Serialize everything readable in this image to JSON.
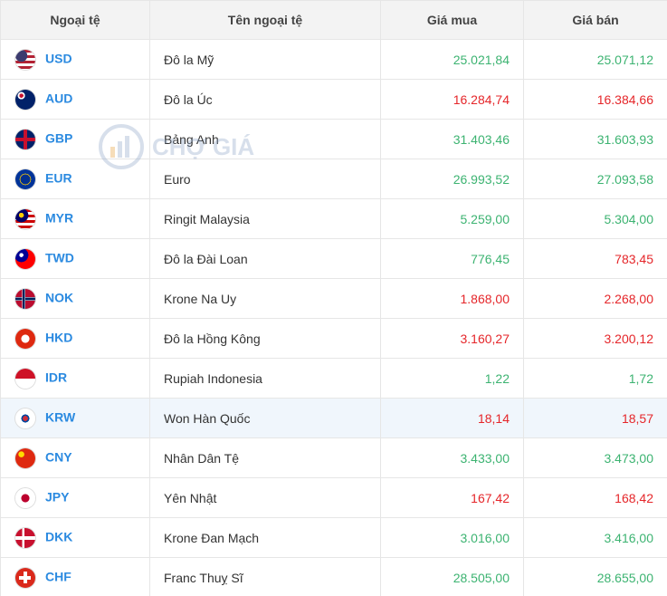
{
  "table": {
    "header": [
      "Ngoại tệ",
      "Tên ngoại tệ",
      "Giá mua",
      "Giá bán"
    ],
    "rows": [
      {
        "code": "USD",
        "name": "Đô la Mỹ",
        "buy": "25.021,84",
        "sell": "25.071,12",
        "buy_color": "#3cb371",
        "sell_color": "#3cb371"
      },
      {
        "code": "AUD",
        "name": "Đô la Úc",
        "buy": "16.284,74",
        "sell": "16.384,66",
        "buy_color": "#e5262a",
        "sell_color": "#e5262a"
      },
      {
        "code": "GBP",
        "name": "Bảng Anh",
        "buy": "31.403,46",
        "sell": "31.603,93",
        "buy_color": "#3cb371",
        "sell_color": "#3cb371"
      },
      {
        "code": "EUR",
        "name": "Euro",
        "buy": "26.993,52",
        "sell": "27.093,58",
        "buy_color": "#3cb371",
        "sell_color": "#3cb371"
      },
      {
        "code": "MYR",
        "name": "Ringit Malaysia",
        "buy": "5.259,00",
        "sell": "5.304,00",
        "buy_color": "#3cb371",
        "sell_color": "#3cb371"
      },
      {
        "code": "TWD",
        "name": "Đô la Đài Loan",
        "buy": "776,45",
        "sell": "783,45",
        "buy_color": "#3cb371",
        "sell_color": "#e5262a"
      },
      {
        "code": "NOK",
        "name": "Krone Na Uy",
        "buy": "1.868,00",
        "sell": "2.268,00",
        "buy_color": "#e5262a",
        "sell_color": "#e5262a"
      },
      {
        "code": "HKD",
        "name": "Đô la Hồng Kông",
        "buy": "3.160,27",
        "sell": "3.200,12",
        "buy_color": "#e5262a",
        "sell_color": "#e5262a"
      },
      {
        "code": "IDR",
        "name": "Rupiah Indonesia",
        "buy": "1,22",
        "sell": "1,72",
        "buy_color": "#3cb371",
        "sell_color": "#3cb371"
      },
      {
        "code": "KRW",
        "name": "Won Hàn Quốc",
        "buy": "18,14",
        "sell": "18,57",
        "buy_color": "#e5262a",
        "sell_color": "#e5262a",
        "highlighted": true
      },
      {
        "code": "CNY",
        "name": "Nhân Dân Tệ",
        "buy": "3.433,00",
        "sell": "3.473,00",
        "buy_color": "#3cb371",
        "sell_color": "#3cb371"
      },
      {
        "code": "JPY",
        "name": "Yên Nhật",
        "buy": "167,42",
        "sell": "168,42",
        "buy_color": "#e5262a",
        "sell_color": "#e5262a"
      },
      {
        "code": "DKK",
        "name": "Krone Đan Mạch",
        "buy": "3.016,00",
        "sell": "3.416,00",
        "buy_color": "#3cb371",
        "sell_color": "#3cb371"
      },
      {
        "code": "CHF",
        "name": "Franc Thuỵ Sĩ",
        "buy": "28.505,00",
        "sell": "28.655,00",
        "buy_color": "#3cb371",
        "sell_color": "#3cb371"
      }
    ]
  },
  "watermark": "CHỢ GIÁ"
}
